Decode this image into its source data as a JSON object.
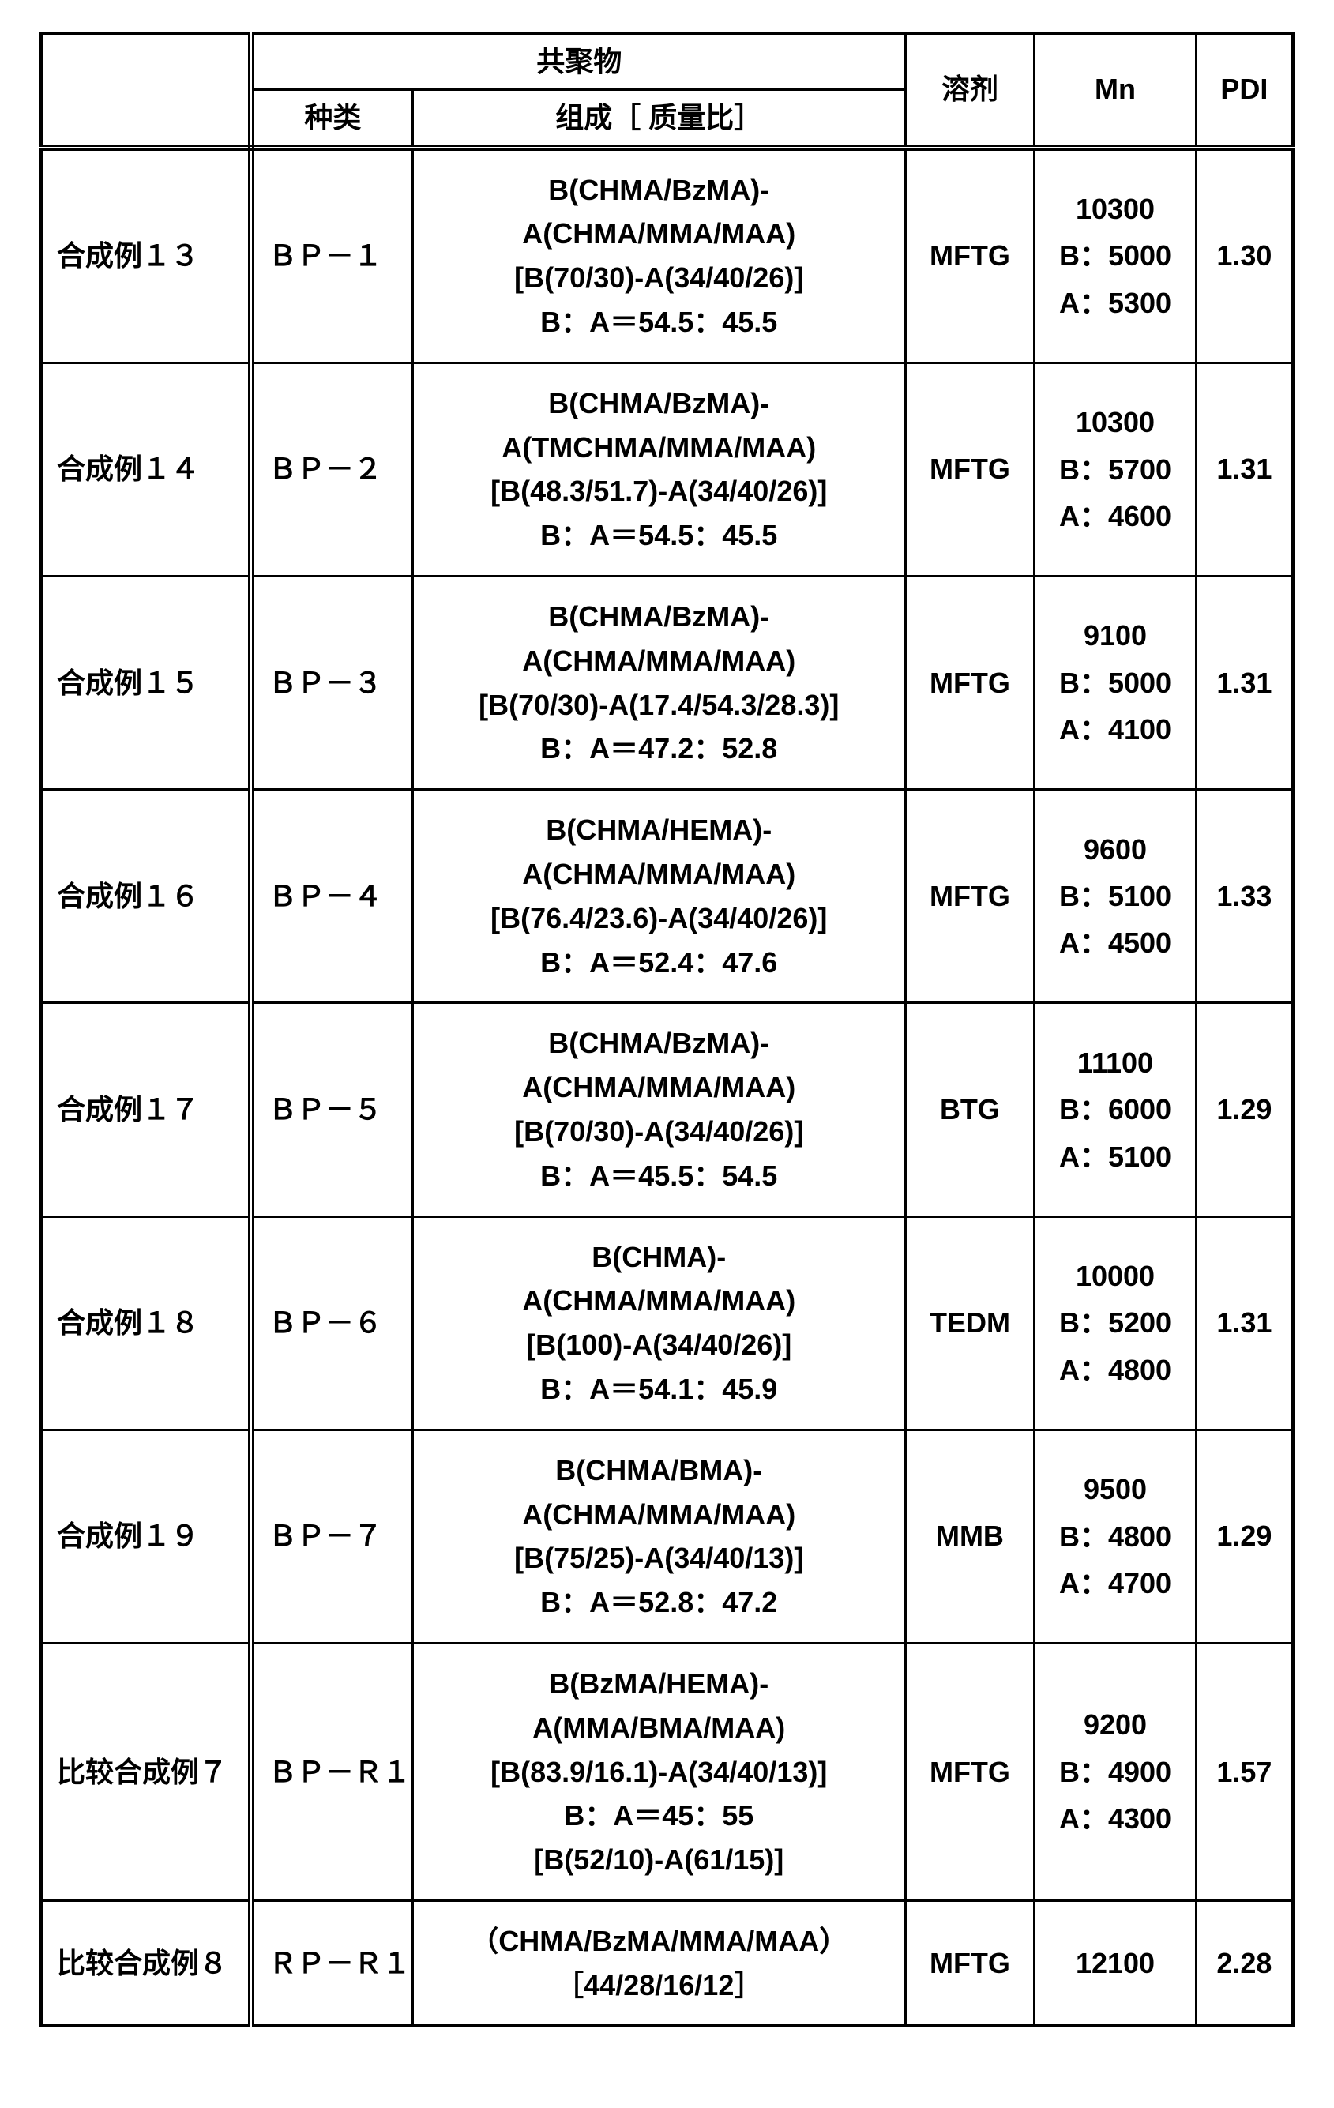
{
  "header": {
    "copolymer": "共聚物",
    "type": "种类",
    "composition": "组成［ 质量比］",
    "solvent": "溶剂",
    "mn": "Mn",
    "pdi": "PDI"
  },
  "rows": [
    {
      "label": "合成例１３",
      "type": "ＢＰ－１",
      "comp": [
        "B(CHMA/BzMA)-",
        "A(CHMA/MMA/MAA)",
        "[B(70/30)-A(34/40/26)]",
        "B：A＝54.5：45.5"
      ],
      "solvent": "MFTG",
      "mn": [
        "10300",
        "B：5000",
        "A：5300"
      ],
      "pdi": "1.30"
    },
    {
      "label": "合成例１４",
      "type": "ＢＰ－２",
      "comp": [
        "B(CHMA/BzMA)-",
        "A(TMCHMA/MMA/MAA)",
        "[B(48.3/51.7)-A(34/40/26)]",
        "B：A＝54.5：45.5"
      ],
      "solvent": "MFTG",
      "mn": [
        "10300",
        "B：5700",
        "A：4600"
      ],
      "pdi": "1.31"
    },
    {
      "label": "合成例１５",
      "type": "ＢＰ－３",
      "comp": [
        "B(CHMA/BzMA)-",
        "A(CHMA/MMA/MAA)",
        "[B(70/30)-A(17.4/54.3/28.3)]",
        "B：A＝47.2：52.8"
      ],
      "solvent": "MFTG",
      "mn": [
        "9100",
        "B：5000",
        "A：4100"
      ],
      "pdi": "1.31"
    },
    {
      "label": "合成例１６",
      "type": "ＢＰ－４",
      "comp": [
        "B(CHMA/HEMA)-",
        "A(CHMA/MMA/MAA)",
        "[B(76.4/23.6)-A(34/40/26)]",
        "B：A＝52.4：47.6"
      ],
      "solvent": "MFTG",
      "mn": [
        "9600",
        "B：5100",
        "A：4500"
      ],
      "pdi": "1.33"
    },
    {
      "label": "合成例１７",
      "type": "ＢＰ－５",
      "comp": [
        "B(CHMA/BzMA)-",
        "A(CHMA/MMA/MAA)",
        "[B(70/30)-A(34/40/26)]",
        "B：A＝45.5：54.5"
      ],
      "solvent": "BTG",
      "mn": [
        "11100",
        "B：6000",
        "A：5100"
      ],
      "pdi": "1.29"
    },
    {
      "label": "合成例１８",
      "type": "ＢＰ－６",
      "comp": [
        "B(CHMA)-",
        "A(CHMA/MMA/MAA)",
        "[B(100)-A(34/40/26)]",
        "B：A＝54.1：45.9"
      ],
      "solvent": "TEDM",
      "mn": [
        "10000",
        "B：5200",
        "A：4800"
      ],
      "pdi": "1.31"
    },
    {
      "label": "合成例１９",
      "type": "ＢＰ－７",
      "comp": [
        "B(CHMA/BMA)-",
        "A(CHMA/MMA/MAA)",
        "[B(75/25)-A(34/40/13)]",
        "B：A＝52.8：47.2"
      ],
      "solvent": "MMB",
      "mn": [
        "9500",
        "B：4800",
        "A：4700"
      ],
      "pdi": "1.29"
    },
    {
      "label": "比较合成例７",
      "type": "ＢＰ－Ｒ１",
      "comp": [
        "B(BzMA/HEMA)-",
        "A(MMA/BMA/MAA)",
        "[B(83.9/16.1)-A(34/40/13)]",
        "B：A＝45：55",
        "[B(52/10)-A(61/15)]"
      ],
      "solvent": "MFTG",
      "mn": [
        "9200",
        "B：4900",
        "A：4300"
      ],
      "pdi": "1.57"
    },
    {
      "label": "比较合成例８",
      "type": "ＲＰ－Ｒ１",
      "comp": [
        "（CHMA/BzMA/MMA/MAA）",
        "［44/28/16/12］"
      ],
      "solvent": "MFTG",
      "mn": [
        "12100"
      ],
      "pdi": "2.28"
    }
  ]
}
